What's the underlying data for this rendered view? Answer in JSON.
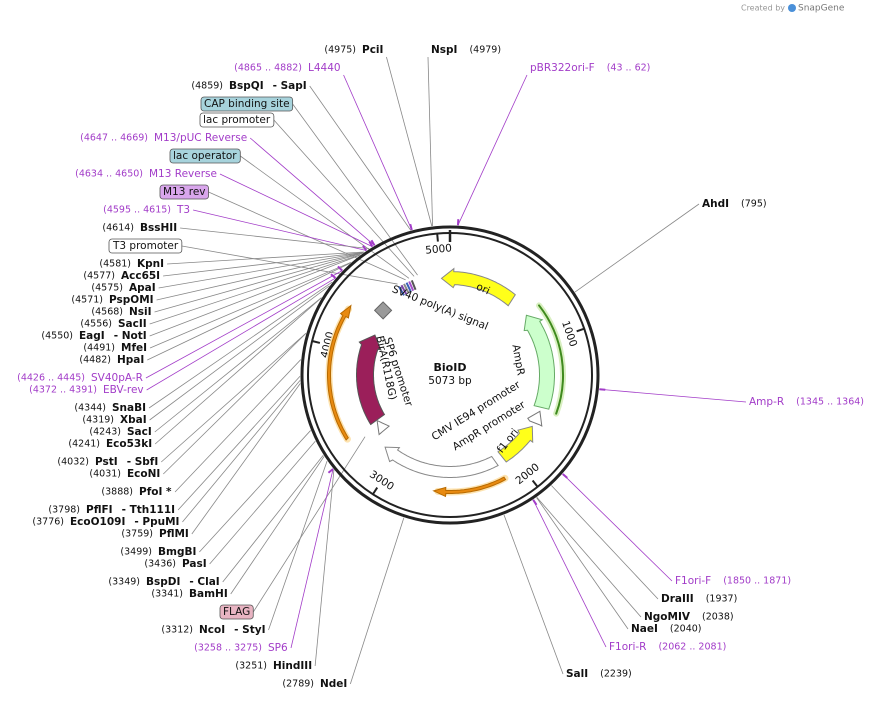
{
  "header": {
    "credit": "Created by",
    "brand": "SnapGene"
  },
  "map": {
    "name": "BioID",
    "length": "5073 bp",
    "ticks": [
      "1000",
      "2000",
      "3000",
      "4000",
      "5000"
    ]
  },
  "features": [
    {
      "label": "ori"
    },
    {
      "label": "AmpR"
    },
    {
      "label": "AmpR promoter"
    },
    {
      "label": "f1 ori"
    },
    {
      "label": "CMV IE94 promoter"
    },
    {
      "label": "SV40 poly(A) signal"
    },
    {
      "label": "BirA(R118G)"
    },
    {
      "label": "SP6 promoter"
    }
  ],
  "labels": [
    {
      "name": "PciI",
      "position": "(4975)",
      "kind": "enzyme"
    },
    {
      "name": "NspI",
      "position": "(4979)",
      "kind": "enzyme"
    },
    {
      "name": "L4440",
      "position": "(4865 .. 4882)",
      "kind": "primer"
    },
    {
      "name": "pBR322ori-F",
      "position": "(43 .. 62)",
      "kind": "primer"
    },
    {
      "name": "BspQI",
      "also": "- SapI",
      "position": "(4859)",
      "kind": "enzyme"
    },
    {
      "name": "CAP binding site",
      "kind": "feature",
      "color": "#a7d3dc"
    },
    {
      "name": "lac promoter",
      "kind": "feature",
      "color": "#ffffff"
    },
    {
      "name": "M13/pUC Reverse",
      "position": "(4647 .. 4669)",
      "kind": "primer"
    },
    {
      "name": "lac operator",
      "kind": "feature",
      "color": "#a7d3dc"
    },
    {
      "name": "M13 Reverse",
      "position": "(4634 .. 4650)",
      "kind": "primer"
    },
    {
      "name": "M13 rev",
      "kind": "feature",
      "color": "#d9a6ec"
    },
    {
      "name": "T3",
      "position": "(4595 .. 4615)",
      "kind": "primer"
    },
    {
      "name": "BssHII",
      "position": "(4614)",
      "kind": "enzyme"
    },
    {
      "name": "T3 promoter",
      "kind": "feature",
      "color": "#ffffff"
    },
    {
      "name": "KpnI",
      "position": "(4581)",
      "kind": "enzyme"
    },
    {
      "name": "Acc65I",
      "position": "(4577)",
      "kind": "enzyme"
    },
    {
      "name": "ApaI",
      "position": "(4575)",
      "kind": "enzyme"
    },
    {
      "name": "PspOMI",
      "position": "(4571)",
      "kind": "enzyme"
    },
    {
      "name": "NsiI",
      "position": "(4568)",
      "kind": "enzyme"
    },
    {
      "name": "SacII",
      "position": "(4556)",
      "kind": "enzyme"
    },
    {
      "name": "EagI",
      "also": "- NotI",
      "position": "(4550)",
      "kind": "enzyme"
    },
    {
      "name": "MfeI",
      "position": "(4491)",
      "kind": "enzyme"
    },
    {
      "name": "HpaI",
      "position": "(4482)",
      "kind": "enzyme"
    },
    {
      "name": "SV40pA-R",
      "position": "(4426 .. 4445)",
      "kind": "primer"
    },
    {
      "name": "EBV-rev",
      "position": "(4372 .. 4391)",
      "kind": "primer"
    },
    {
      "name": "SnaBI",
      "position": "(4344)",
      "kind": "enzyme"
    },
    {
      "name": "XbaI",
      "position": "(4319)",
      "kind": "enzyme"
    },
    {
      "name": "SacI",
      "position": "(4243)",
      "kind": "enzyme"
    },
    {
      "name": "Eco53kI",
      "position": "(4241)",
      "kind": "enzyme"
    },
    {
      "name": "PstI",
      "also": "- SbfI",
      "position": "(4032)",
      "kind": "enzyme"
    },
    {
      "name": "EcoNI",
      "position": "(4031)",
      "kind": "enzyme"
    },
    {
      "name": "PfoI *",
      "position": "(3888)",
      "kind": "enzyme"
    },
    {
      "name": "PflFI",
      "also": "- Tth111I",
      "position": "(3798)",
      "kind": "enzyme"
    },
    {
      "name": "EcoO109I",
      "also": "- PpuMI",
      "position": "(3776)",
      "kind": "enzyme"
    },
    {
      "name": "PflMI",
      "position": "(3759)",
      "kind": "enzyme"
    },
    {
      "name": "BmgBI",
      "position": "(3499)",
      "kind": "enzyme"
    },
    {
      "name": "PasI",
      "position": "(3436)",
      "kind": "enzyme"
    },
    {
      "name": "BspDI",
      "also": "- ClaI",
      "position": "(3349)",
      "kind": "enzyme"
    },
    {
      "name": "BamHI",
      "position": "(3341)",
      "kind": "enzyme"
    },
    {
      "name": "FLAG",
      "kind": "feature",
      "color": "#e8b4c2"
    },
    {
      "name": "NcoI",
      "also": "- StyI",
      "position": "(3312)",
      "kind": "enzyme"
    },
    {
      "name": "SP6",
      "position": "(3258 .. 3275)",
      "kind": "primer"
    },
    {
      "name": "HindIII",
      "position": "(3251)",
      "kind": "enzyme"
    },
    {
      "name": "NdeI",
      "position": "(2789)",
      "kind": "enzyme"
    },
    {
      "name": "AhdI",
      "position": "(795)",
      "kind": "enzyme"
    },
    {
      "name": "Amp-R",
      "position": "(1345 .. 1364)",
      "kind": "primer"
    },
    {
      "name": "F1ori-F",
      "position": "(1850 .. 1871)",
      "kind": "primer"
    },
    {
      "name": "DraIII",
      "position": "(1937)",
      "kind": "enzyme"
    },
    {
      "name": "NgoMIV",
      "position": "(2038)",
      "kind": "enzyme"
    },
    {
      "name": "NaeI",
      "position": "(2040)",
      "kind": "enzyme"
    },
    {
      "name": "F1ori-R",
      "position": "(2062 .. 2081)",
      "kind": "primer"
    },
    {
      "name": "SalI",
      "position": "(2239)",
      "kind": "enzyme"
    }
  ]
}
